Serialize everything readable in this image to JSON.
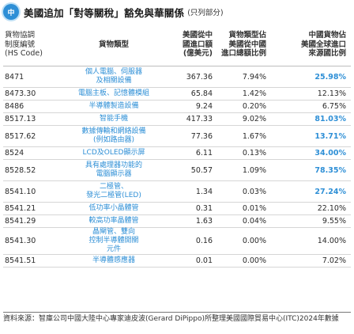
{
  "header": {
    "badge": "中",
    "title": "美國追加「對等關稅」豁免與華關係",
    "subtitle": "(只列部分)"
  },
  "table": {
    "columns": [
      "貨物協調\n制度編號\n(HS Code)",
      "貨物類型",
      "美國從中\n國進口額\n(億美元)",
      "貨物類型佔\n美國從中國\n進口總額比例",
      "中國貨物佔\n美國全球進口\n來源國比例"
    ],
    "rows": [
      {
        "code": "8471",
        "type": "個人電腦、伺服器\n及相關設備",
        "import": "367.36",
        "share_cn": "7.94%",
        "share_global": "25.98%",
        "color": "blue"
      },
      {
        "code": "8473.30",
        "type": "電腦主板、記憶體模組",
        "import": "65.84",
        "share_cn": "1.42%",
        "share_global": "12.13%",
        "color": "black"
      },
      {
        "code": "8486",
        "type": "半導體製造設備",
        "import": "9.24",
        "share_cn": "0.20%",
        "share_global": "6.75%",
        "color": "black"
      },
      {
        "code": "8517.13",
        "type": "智能手機",
        "import": "417.33",
        "share_cn": "9.02%",
        "share_global": "81.03%",
        "color": "blue"
      },
      {
        "code": "8517.62",
        "type": "數據傳輸和網絡設備\n(例如路由器)",
        "import": "77.36",
        "share_cn": "1.67%",
        "share_global": "13.71%",
        "color": "blue"
      },
      {
        "code": "8524",
        "type": "LCD及OLED顯示屏",
        "import": "6.11",
        "share_cn": "0.13%",
        "share_global": "34.00%",
        "color": "blue"
      },
      {
        "code": "8528.52",
        "type": "具有處理器功能的\n電腦顯示器",
        "import": "50.57",
        "share_cn": "1.09%",
        "share_global": "78.35%",
        "color": "blue"
      },
      {
        "code": "8541.10",
        "type": "二極管、\n發光二極管(LED)",
        "import": "1.34",
        "share_cn": "0.03%",
        "share_global": "27.24%",
        "color": "blue"
      },
      {
        "code": "8541.21",
        "type": "低功率小晶體管",
        "import": "0.31",
        "share_cn": "0.01%",
        "share_global": "22.10%",
        "color": "black"
      },
      {
        "code": "8541.29",
        "type": "較高功率晶體管",
        "import": "1.63",
        "share_cn": "0.04%",
        "share_global": "9.55%",
        "color": "black"
      },
      {
        "code": "8541.30",
        "type": "晶閘管、雙向\n控制半導體開關\n元件",
        "import": "0.16",
        "share_cn": "0.00%",
        "share_global": "14.00%",
        "color": "black"
      },
      {
        "code": "8541.51",
        "type": "半導體感應器",
        "import": "0.01",
        "share_cn": "0.00%",
        "share_global": "7.02%",
        "color": "black"
      }
    ]
  },
  "footer": {
    "source": "資料來源：智庫公司中國大陸中心專家迪皮波(Gerard DiPippo)所整理美國國際貿易中心(ITC)2024年數據"
  }
}
